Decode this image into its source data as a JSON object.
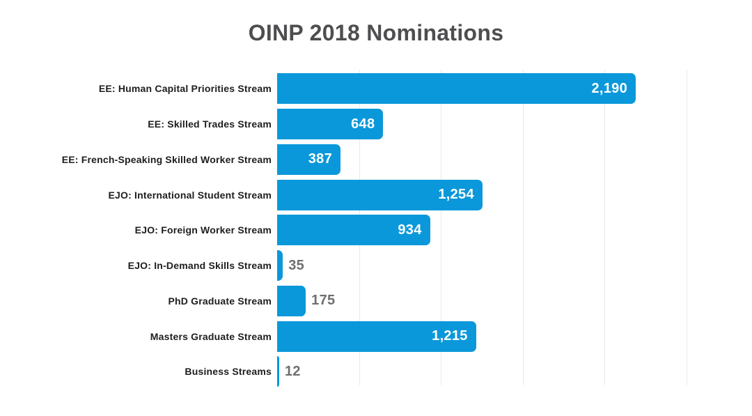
{
  "chart_data": {
    "type": "bar",
    "orientation": "horizontal",
    "title": "OINP 2018 Nominations",
    "xlabel": "",
    "ylabel": "",
    "xlim": [
      0,
      2730
    ],
    "gridlines": [
      500,
      1000,
      1500,
      2000,
      2500
    ],
    "grid": true,
    "legend": false,
    "categories": [
      "EE: Human Capital Priorities Stream",
      "EE: Skilled Trades Stream",
      "EE: French-Speaking Skilled Worker Stream",
      "EJO: International Student Stream",
      "EJO: Foreign Worker Stream",
      "EJO: In-Demand Skills Stream",
      "PhD Graduate Stream",
      "Masters Graduate Stream",
      "Business Streams"
    ],
    "values": [
      2190,
      648,
      387,
      1254,
      934,
      35,
      175,
      1215,
      12
    ],
    "bars": [
      {
        "category": "EE: Human Capital Priorities Stream",
        "value": 2190,
        "display": "2,190",
        "placement": "inside"
      },
      {
        "category": "EE: Skilled Trades Stream",
        "value": 648,
        "display": "648",
        "placement": "inside"
      },
      {
        "category": "EE: French-Speaking Skilled Worker Stream",
        "value": 387,
        "display": "387",
        "placement": "inside"
      },
      {
        "category": "EJO: International Student Stream",
        "value": 1254,
        "display": "1,254",
        "placement": "inside"
      },
      {
        "category": "EJO: Foreign Worker Stream",
        "value": 934,
        "display": "934",
        "placement": "inside"
      },
      {
        "category": "EJO: In-Demand Skills Stream",
        "value": 35,
        "display": "35",
        "placement": "outside"
      },
      {
        "category": "PhD Graduate Stream",
        "value": 175,
        "display": "175",
        "placement": "outside"
      },
      {
        "category": "Masters Graduate Stream",
        "value": 1215,
        "display": "1,215",
        "placement": "outside_none_inside",
        "note": ""
      },
      {
        "category": "Business Streams",
        "value": 12,
        "display": "12",
        "placement": "outside"
      }
    ],
    "colors": {
      "bar": "#0a98da",
      "value_inside": "#ffffff",
      "value_outside": "#6f6f71",
      "category_label": "#1d1d1f",
      "title": "#4e4e50",
      "gridline": "#e9e9e9",
      "background": "#ffffff"
    }
  }
}
